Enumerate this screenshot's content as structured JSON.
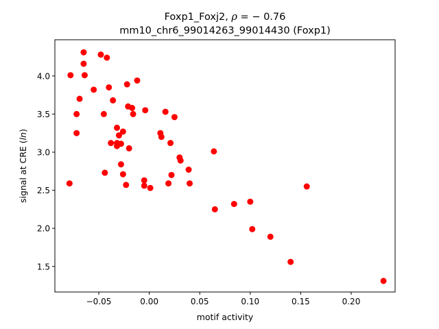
{
  "chart_data": {
    "type": "scatter",
    "title": {
      "prefix": "Foxp1_Foxj2, ",
      "rho_symbol": "ρ",
      "rho_text": " = − 0.76",
      "line2": "mm10_chr6_99014263_99014430 (Foxp1)"
    },
    "xlabel": "motif activity",
    "ylabel_prefix": "signal at CRE (",
    "ylabel_italic": "ln",
    "ylabel_suffix": ")",
    "xlim": [
      -0.0935,
      0.2435
    ],
    "ylim": [
      1.165,
      4.475
    ],
    "xticks": [
      {
        "value": -0.05,
        "label": "−0.05"
      },
      {
        "value": 0.0,
        "label": "0.00"
      },
      {
        "value": 0.05,
        "label": "0.05"
      },
      {
        "value": 0.1,
        "label": "0.10"
      },
      {
        "value": 0.15,
        "label": "0.15"
      },
      {
        "value": 0.2,
        "label": "0.20"
      }
    ],
    "yticks": [
      {
        "value": 1.5,
        "label": "1.5"
      },
      {
        "value": 2.0,
        "label": "2.0"
      },
      {
        "value": 2.5,
        "label": "2.5"
      },
      {
        "value": 3.0,
        "label": "3.0"
      },
      {
        "value": 3.5,
        "label": "3.5"
      },
      {
        "value": 4.0,
        "label": "4.0"
      }
    ],
    "marker_color": "#ff0000",
    "points": [
      {
        "x": -0.065,
        "y": 4.31
      },
      {
        "x": -0.048,
        "y": 4.28
      },
      {
        "x": -0.042,
        "y": 4.24
      },
      {
        "x": -0.065,
        "y": 4.16
      },
      {
        "x": -0.078,
        "y": 4.01
      },
      {
        "x": -0.064,
        "y": 4.01
      },
      {
        "x": -0.012,
        "y": 3.94
      },
      {
        "x": -0.022,
        "y": 3.89
      },
      {
        "x": -0.04,
        "y": 3.85
      },
      {
        "x": -0.055,
        "y": 3.82
      },
      {
        "x": -0.069,
        "y": 3.7
      },
      {
        "x": -0.036,
        "y": 3.68
      },
      {
        "x": -0.021,
        "y": 3.6
      },
      {
        "x": -0.017,
        "y": 3.58
      },
      {
        "x": -0.004,
        "y": 3.55
      },
      {
        "x": 0.016,
        "y": 3.53
      },
      {
        "x": -0.072,
        "y": 3.5
      },
      {
        "x": -0.045,
        "y": 3.5
      },
      {
        "x": -0.016,
        "y": 3.5
      },
      {
        "x": 0.025,
        "y": 3.46
      },
      {
        "x": -0.032,
        "y": 3.32
      },
      {
        "x": -0.026,
        "y": 3.27
      },
      {
        "x": -0.072,
        "y": 3.25
      },
      {
        "x": 0.011,
        "y": 3.25
      },
      {
        "x": -0.03,
        "y": 3.22
      },
      {
        "x": 0.012,
        "y": 3.2
      },
      {
        "x": -0.038,
        "y": 3.12
      },
      {
        "x": -0.032,
        "y": 3.12
      },
      {
        "x": -0.028,
        "y": 3.11
      },
      {
        "x": 0.021,
        "y": 3.12
      },
      {
        "x": -0.032,
        "y": 3.08
      },
      {
        "x": -0.02,
        "y": 3.05
      },
      {
        "x": 0.064,
        "y": 3.01
      },
      {
        "x": 0.03,
        "y": 2.93
      },
      {
        "x": 0.031,
        "y": 2.89
      },
      {
        "x": -0.028,
        "y": 2.84
      },
      {
        "x": 0.039,
        "y": 2.77
      },
      {
        "x": -0.044,
        "y": 2.73
      },
      {
        "x": -0.026,
        "y": 2.71
      },
      {
        "x": 0.022,
        "y": 2.7
      },
      {
        "x": -0.005,
        "y": 2.63
      },
      {
        "x": -0.079,
        "y": 2.59
      },
      {
        "x": 0.019,
        "y": 2.59
      },
      {
        "x": 0.04,
        "y": 2.59
      },
      {
        "x": -0.023,
        "y": 2.57
      },
      {
        "x": -0.005,
        "y": 2.56
      },
      {
        "x": 0.001,
        "y": 2.53
      },
      {
        "x": 0.156,
        "y": 2.55
      },
      {
        "x": 0.1,
        "y": 2.35
      },
      {
        "x": 0.084,
        "y": 2.32
      },
      {
        "x": 0.065,
        "y": 2.25
      },
      {
        "x": 0.102,
        "y": 1.99
      },
      {
        "x": 0.12,
        "y": 1.89
      },
      {
        "x": 0.14,
        "y": 1.56
      },
      {
        "x": 0.232,
        "y": 1.31
      }
    ],
    "grid": false,
    "legend": "none"
  }
}
